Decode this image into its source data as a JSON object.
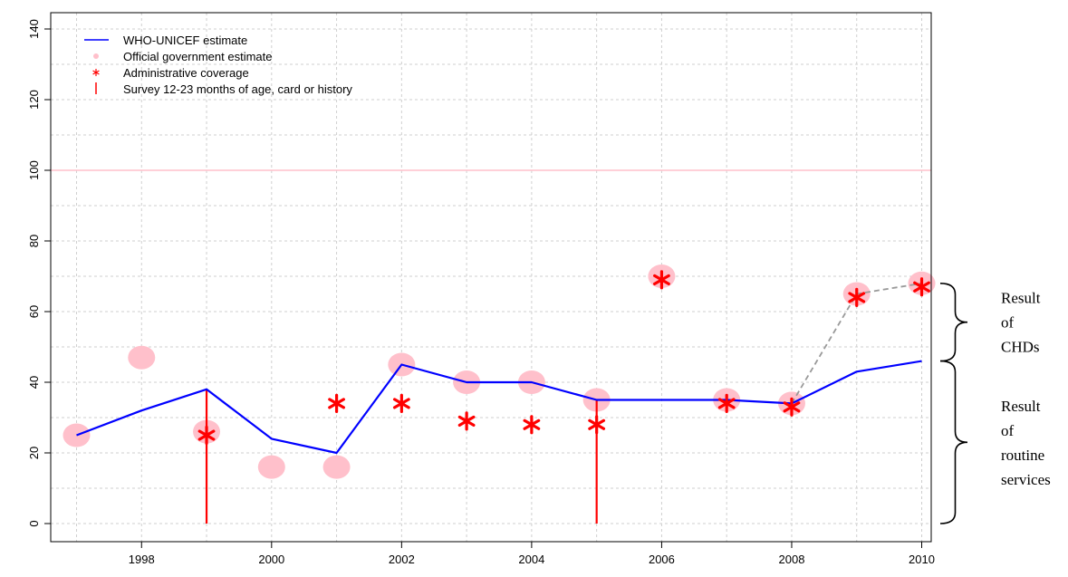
{
  "chart_data": {
    "type": "line",
    "title": "",
    "xlabel": "",
    "ylabel": "",
    "xlim": [
      1996.8,
      2010.5
    ],
    "ylim": [
      -7,
      145
    ],
    "x_ticks": [
      1998,
      2000,
      2002,
      2004,
      2006,
      2008,
      2010
    ],
    "y_ticks": [
      0,
      20,
      40,
      60,
      80,
      100,
      120,
      140
    ],
    "grid": true,
    "reference_line": 100,
    "legend": {
      "position": "top-left",
      "entries": [
        {
          "label": "WHO-UNICEF estimate",
          "symbol": "line",
          "color": "#0000ff"
        },
        {
          "label": "Official government estimate",
          "symbol": "dot",
          "color": "#ffc0cb"
        },
        {
          "label": "Administrative coverage",
          "symbol": "star",
          "color": "#ff0000"
        },
        {
          "label": "Survey 12-23 months of age, card or history",
          "symbol": "bar",
          "color": "#ff0000"
        }
      ]
    },
    "series": [
      {
        "name": "WHO-UNICEF estimate",
        "color": "#0000ff",
        "x": [
          1997,
          1998,
          1999,
          2000,
          2001,
          2002,
          2003,
          2004,
          2005,
          2006,
          2007,
          2008,
          2009,
          2010
        ],
        "values": [
          25,
          32,
          38,
          24,
          20,
          45,
          40,
          40,
          35,
          35,
          35,
          34,
          43,
          46
        ]
      },
      {
        "name": "Official government estimate",
        "color": "#ffc0cb",
        "x": [
          1997,
          1998,
          1999,
          2000,
          2001,
          2002,
          2003,
          2004,
          2005,
          2006,
          2007,
          2008,
          2009,
          2010
        ],
        "values": [
          25,
          47,
          26,
          16,
          16,
          45,
          40,
          40,
          35,
          70,
          35,
          34,
          65,
          68
        ]
      },
      {
        "name": "Administrative coverage",
        "color": "#ff0000",
        "x": [
          1999,
          2001,
          2002,
          2003,
          2004,
          2005,
          2006,
          2007,
          2008,
          2009,
          2010
        ],
        "values": [
          25,
          34,
          34,
          29,
          28,
          28,
          69,
          34,
          33,
          64,
          67
        ]
      },
      {
        "name": "Survey 12-23 months of age, card or history",
        "color": "#ff0000",
        "x": [
          1999,
          2005
        ],
        "values": [
          38,
          35
        ]
      }
    ],
    "dashed_segment": {
      "color": "#999999",
      "x": [
        2008,
        2009,
        2010
      ],
      "values": [
        34,
        65,
        68
      ]
    },
    "annotations": [
      {
        "text_lines": [
          "Result",
          "of",
          "CHDs"
        ],
        "range": [
          46,
          68
        ]
      },
      {
        "text_lines": [
          "Result",
          "of",
          "routine",
          "services"
        ],
        "range": [
          0,
          46
        ]
      }
    ]
  }
}
